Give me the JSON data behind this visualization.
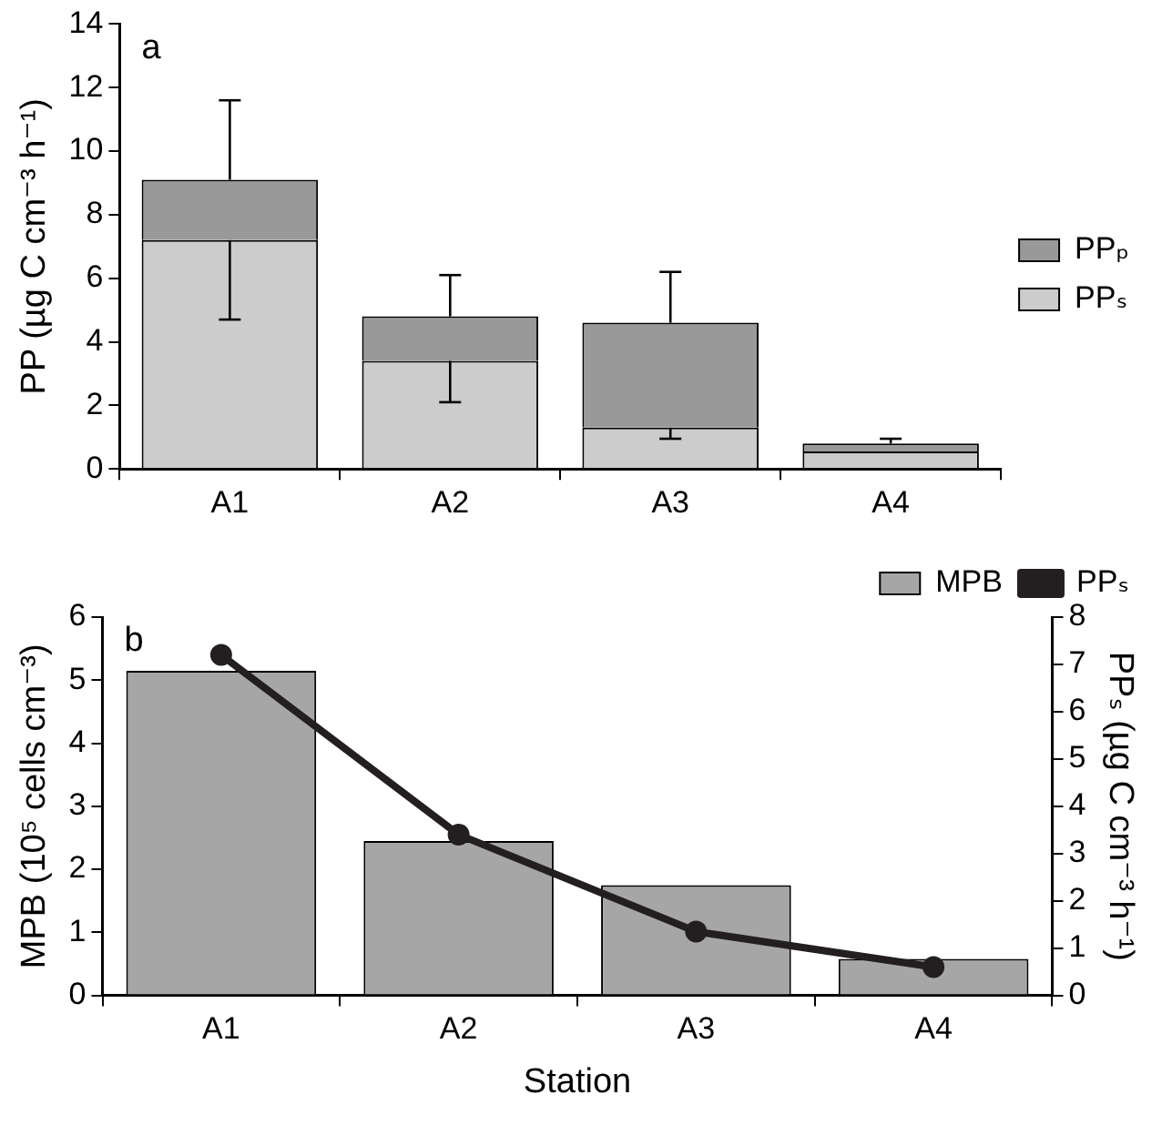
{
  "chart_data": [
    {
      "type": "bar",
      "stacked": true,
      "annotations": [
        "a"
      ],
      "ylabel": "PP (µg C cm⁻³ h⁻¹)",
      "categories": [
        "A1",
        "A2",
        "A3",
        "A4"
      ],
      "ylim": [
        0,
        14
      ],
      "yticks": [
        0,
        2,
        4,
        6,
        8,
        10,
        12,
        14
      ],
      "legend": "right",
      "grid": false,
      "series": [
        {
          "name": "PPₛ",
          "color": "#cccccc",
          "values": [
            7.2,
            3.4,
            1.3,
            0.55
          ],
          "errors": [
            [
              4.7,
              7.2
            ],
            [
              2.1,
              3.4
            ],
            [
              0.95,
              1.3
            ],
            [
              0.5,
              0.55
            ]
          ]
        },
        {
          "name": "PPₚ",
          "color": "#999999",
          "values": [
            1.9,
            1.4,
            3.3,
            0.25
          ],
          "errors": [
            [
              9.1,
              11.6
            ],
            [
              4.8,
              6.1
            ],
            [
              4.6,
              6.2
            ],
            [
              0.8,
              0.95
            ]
          ]
        }
      ]
    },
    {
      "type": "bar",
      "annotations": [
        "b"
      ],
      "xlabel": "Station",
      "ylabel": "MPB (10⁵ cells cm⁻³)",
      "y2label": "PPₛ (µg C cm⁻³ h⁻¹)",
      "categories": [
        "A1",
        "A2",
        "A3",
        "A4"
      ],
      "ylim": [
        0,
        6
      ],
      "yticks": [
        0,
        1,
        2,
        3,
        4,
        5,
        6
      ],
      "y2lim": [
        0,
        8
      ],
      "y2ticks": [
        0,
        1,
        2,
        3,
        4,
        5,
        6,
        7,
        8
      ],
      "legend": "top right",
      "grid": false,
      "marker": "circle",
      "series": [
        {
          "name": "MPB",
          "color": "#a6a6a6",
          "values": [
            5.15,
            2.45,
            1.75,
            0.58
          ]
        },
        {
          "name": "PPₛ",
          "type": "line",
          "axis": "y2",
          "color": "#231f20",
          "values": [
            7.2,
            3.4,
            1.35,
            0.6
          ]
        }
      ]
    }
  ]
}
